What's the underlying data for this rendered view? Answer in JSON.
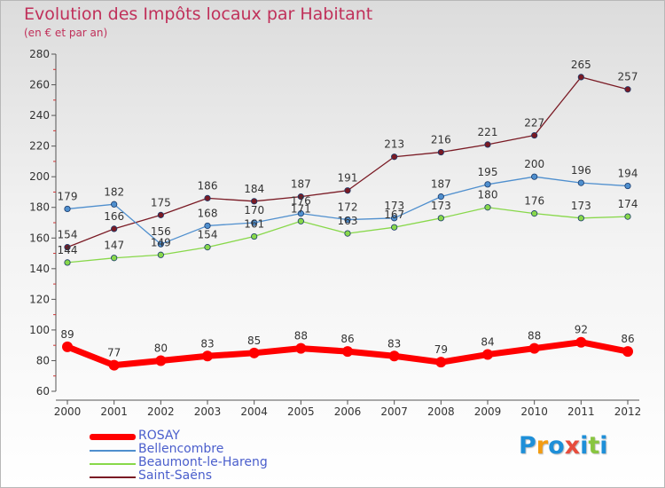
{
  "title": "Evolution des Impôts locaux par Habitant",
  "subtitle": "(en € et par an)",
  "chart_data": {
    "type": "line",
    "x": [
      2000,
      2001,
      2002,
      2003,
      2004,
      2005,
      2006,
      2007,
      2008,
      2009,
      2010,
      2011,
      2012
    ],
    "ylim": [
      60,
      280
    ],
    "yticks": [
      60,
      80,
      100,
      120,
      140,
      160,
      180,
      200,
      220,
      240,
      260,
      280
    ],
    "grid": false,
    "legend": "bottom-left",
    "series": [
      {
        "name": "Saint-Saëns",
        "color": "#7a1a24",
        "values": [
          154,
          166,
          175,
          186,
          184,
          187,
          191,
          213,
          216,
          221,
          227,
          265,
          257
        ]
      },
      {
        "name": "Bellencombre",
        "color": "#4f8fce",
        "values": [
          179,
          182,
          156,
          168,
          170,
          176,
          172,
          173,
          187,
          195,
          200,
          196,
          194
        ]
      },
      {
        "name": "Beaumont-le-Hareng",
        "color": "#88d84a",
        "values": [
          144,
          147,
          149,
          154,
          161,
          171,
          163,
          167,
          173,
          180,
          176,
          173,
          174
        ]
      },
      {
        "name": "ROSAY",
        "color": "#ff0000",
        "values": [
          89,
          77,
          80,
          83,
          85,
          88,
          86,
          83,
          79,
          84,
          88,
          92,
          86
        ]
      }
    ]
  },
  "legend": {
    "items": [
      {
        "label": "ROSAY",
        "color": "#ff0000"
      },
      {
        "label": "Bellencombre",
        "color": "#4f8fce"
      },
      {
        "label": "Beaumont-le-Hareng",
        "color": "#88d84a"
      },
      {
        "label": "Saint-Saëns",
        "color": "#7a1a24"
      }
    ]
  },
  "logo": {
    "text": "Proxiti",
    "colors": [
      "#1e8fd8",
      "#f39c12",
      "#1e8fd8",
      "#e74c3c",
      "#1e8fd8",
      "#88c540",
      "#1e8fd8"
    ]
  }
}
